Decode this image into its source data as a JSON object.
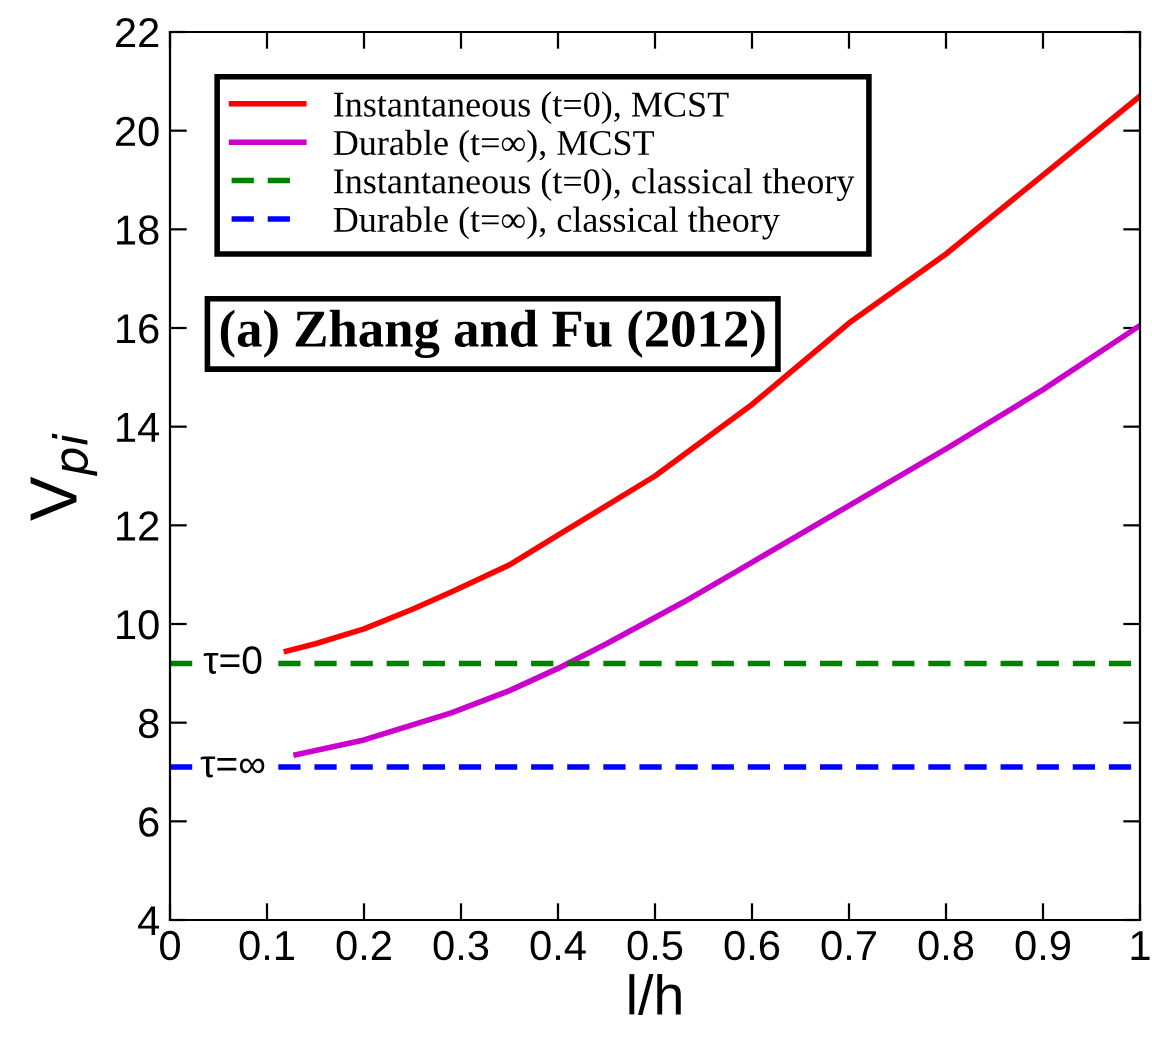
{
  "chart_data": {
    "type": "line",
    "xlabel": "l/h",
    "ylabel": "V$_{pi}$",
    "xlim": [
      0,
      1
    ],
    "ylim": [
      4,
      22
    ],
    "xticks": [
      0,
      0.1,
      0.2,
      0.3,
      0.4,
      0.5,
      0.6,
      0.7,
      0.8,
      0.9,
      1
    ],
    "yticks": [
      4,
      6,
      8,
      10,
      12,
      14,
      16,
      18,
      20,
      22
    ],
    "grid": false,
    "legend": "top left",
    "series": [
      {
        "name": "Instantaneous (t=0), MCST",
        "color": "#ff0000",
        "line_style": "solid",
        "x": [
          0.12,
          0.15,
          0.2,
          0.25,
          0.29,
          0.35,
          0.4,
          0.45,
          0.5,
          0.6,
          0.7,
          0.8,
          0.9,
          1.0
        ],
        "values": [
          9.45,
          9.6,
          9.9,
          10.3,
          10.65,
          11.2,
          11.8,
          12.4,
          13.0,
          14.45,
          16.1,
          17.5,
          19.1,
          20.7
        ]
      },
      {
        "name": "Durable (t=∞), MCST",
        "color": "#cc00cc",
        "line_style": "solid",
        "x": [
          0.13,
          0.2,
          0.29,
          0.35,
          0.4,
          0.45,
          0.53,
          0.6,
          0.7,
          0.8,
          0.9,
          1.0
        ],
        "values": [
          7.35,
          7.65,
          8.2,
          8.65,
          9.1,
          9.6,
          10.45,
          11.25,
          12.4,
          13.55,
          14.75,
          16.05
        ]
      },
      {
        "name": "Instantaneous (t=0), classical theory",
        "color": "#008000",
        "line_style": "dashed",
        "x": [
          0,
          1
        ],
        "values": [
          9.2,
          9.2
        ]
      },
      {
        "name": "Durable (t=∞), classical theory",
        "color": "#0000ff",
        "line_style": "dashed",
        "x": [
          0,
          1
        ],
        "values": [
          7.1,
          7.1
        ]
      }
    ],
    "annotations": [
      "(a) Zhang and Fu (2012)",
      {
        "text": "τ=0",
        "x": 0.065,
        "y": 9.2
      },
      {
        "text": "τ=∞",
        "x": 0.065,
        "y": 7.1
      }
    ]
  }
}
